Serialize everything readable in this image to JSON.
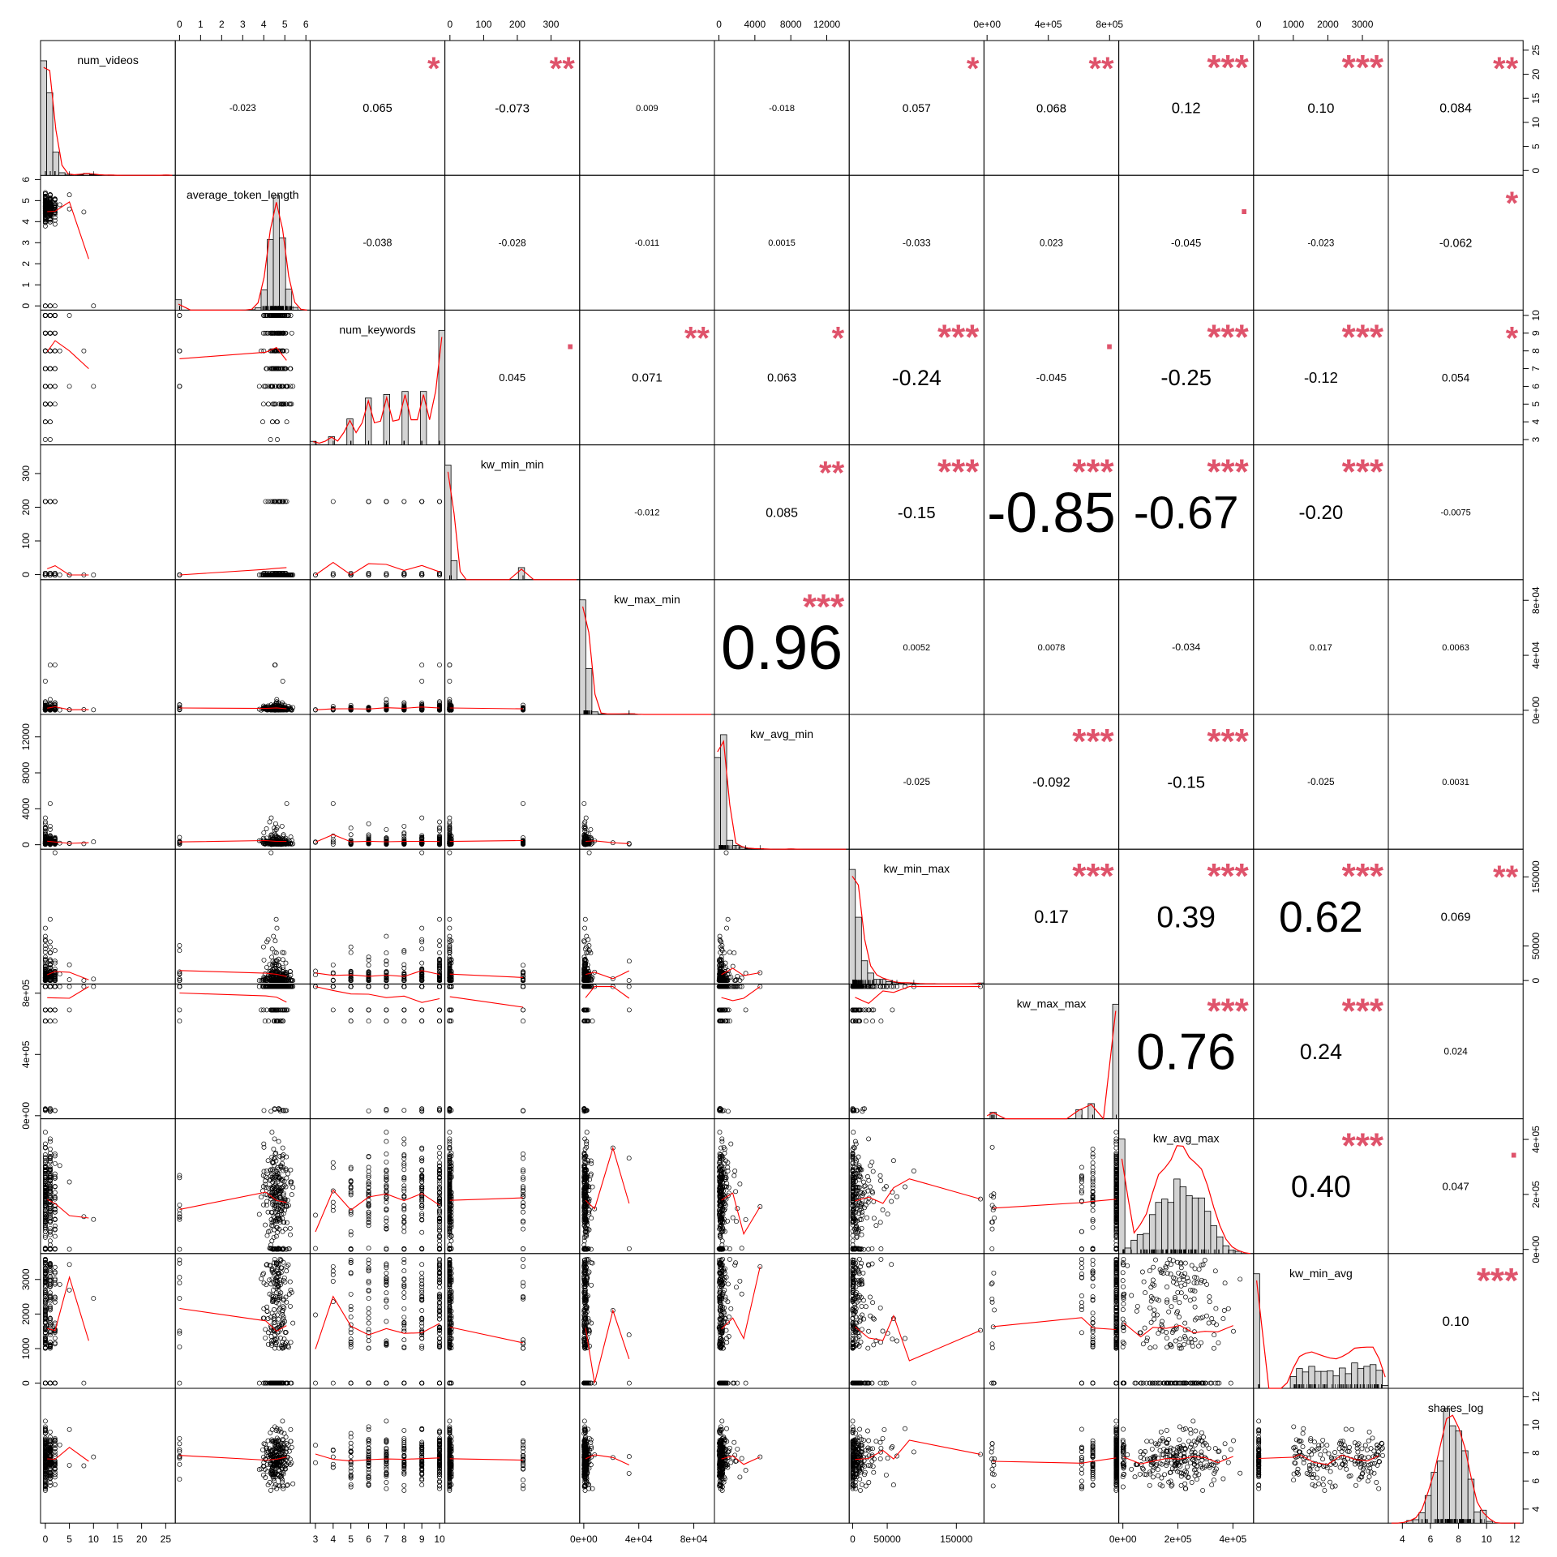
{
  "chart_data": {
    "type": "scatter-matrix",
    "title": "",
    "variables": [
      "num_videos",
      "average_token_length",
      "num_keywords",
      "kw_min_min",
      "kw_max_min",
      "kw_avg_min",
      "kw_min_max",
      "kw_max_max",
      "kw_avg_max",
      "kw_min_avg",
      "shares_log"
    ],
    "ranges": [
      [
        -1,
        27
      ],
      [
        -0.2,
        6.2
      ],
      [
        2.7,
        10.3
      ],
      [
        -15,
        385
      ],
      [
        -3000,
        95000
      ],
      [
        -500,
        14500
      ],
      [
        -5000,
        190000
      ],
      [
        -20000,
        860000
      ],
      [
        -15000,
        475000
      ],
      [
        -150,
        3750
      ],
      [
        3,
        12.6
      ]
    ],
    "axes": {
      "top": [
        {
          "panel": 1,
          "ticks": [
            0,
            1,
            2,
            3,
            4,
            5,
            6
          ],
          "labels": [
            "0",
            "1",
            "2",
            "3",
            "4",
            "5",
            "6"
          ]
        },
        {
          "panel": 3,
          "ticks": [
            0,
            100,
            200,
            300
          ],
          "labels": [
            "0",
            "100",
            "200",
            "300"
          ]
        },
        {
          "panel": 5,
          "ticks": [
            0,
            4000,
            8000,
            12000
          ],
          "labels": [
            "0",
            "4000",
            "8000",
            "12000"
          ]
        },
        {
          "panel": 7,
          "ticks": [
            0,
            400000,
            800000
          ],
          "labels": [
            "0e+00",
            "4e+05",
            "8e+05"
          ]
        },
        {
          "panel": 9,
          "ticks": [
            0,
            1000,
            2000,
            3000
          ],
          "labels": [
            "0",
            "1000",
            "2000",
            "3000"
          ]
        }
      ],
      "bottom": [
        {
          "panel": 0,
          "ticks": [
            0,
            5,
            10,
            15,
            20,
            25
          ],
          "labels": [
            "0",
            "5",
            "10",
            "15",
            "20",
            "25"
          ]
        },
        {
          "panel": 2,
          "ticks": [
            3,
            4,
            5,
            6,
            7,
            8,
            9,
            10
          ],
          "labels": [
            "3",
            "4",
            "5",
            "6",
            "7",
            "8",
            "9",
            "10"
          ]
        },
        {
          "panel": 4,
          "ticks": [
            0,
            40000,
            80000
          ],
          "labels": [
            "0e+00",
            "4e+04",
            "8e+04"
          ]
        },
        {
          "panel": 6,
          "ticks": [
            0,
            50000,
            150000
          ],
          "labels": [
            "0",
            "50000",
            "150000"
          ]
        },
        {
          "panel": 8,
          "ticks": [
            0,
            200000,
            400000
          ],
          "labels": [
            "0e+00",
            "2e+05",
            "4e+05"
          ]
        },
        {
          "panel": 10,
          "ticks": [
            4,
            6,
            8,
            10,
            12
          ],
          "labels": [
            "4",
            "6",
            "8",
            "10",
            "12"
          ]
        }
      ],
      "left": [
        {
          "panel": 1,
          "ticks": [
            0,
            1,
            2,
            3,
            4,
            5,
            6
          ],
          "labels": [
            "0",
            "1",
            "2",
            "3",
            "4",
            "5",
            "6"
          ]
        },
        {
          "panel": 3,
          "ticks": [
            0,
            100,
            200,
            300
          ],
          "labels": [
            "0",
            "100",
            "200",
            "300"
          ]
        },
        {
          "panel": 5,
          "ticks": [
            0,
            4000,
            8000,
            12000
          ],
          "labels": [
            "0",
            "4000",
            "8000",
            "12000"
          ]
        },
        {
          "panel": 7,
          "ticks": [
            0,
            400000,
            800000
          ],
          "labels": [
            "0e+00",
            "4e+05",
            "8e+05"
          ]
        },
        {
          "panel": 9,
          "ticks": [
            0,
            1000,
            2000,
            3000
          ],
          "labels": [
            "0",
            "1000",
            "2000",
            "3000"
          ]
        }
      ],
      "right": [
        {
          "panel": 0,
          "ticks": [
            0,
            5,
            10,
            15,
            20,
            25
          ],
          "labels": [
            "0",
            "5",
            "10",
            "15",
            "20",
            "25"
          ]
        },
        {
          "panel": 2,
          "ticks": [
            3,
            4,
            5,
            6,
            7,
            8,
            9,
            10
          ],
          "labels": [
            "3",
            "4",
            "5",
            "6",
            "7",
            "8",
            "9",
            "10"
          ]
        },
        {
          "panel": 4,
          "ticks": [
            0,
            40000,
            80000
          ],
          "labels": [
            "0e+00",
            "4e+04",
            "8e+04"
          ]
        },
        {
          "panel": 6,
          "ticks": [
            0,
            50000,
            150000
          ],
          "labels": [
            "0",
            "50000",
            "150000"
          ]
        },
        {
          "panel": 8,
          "ticks": [
            0,
            200000,
            400000
          ],
          "labels": [
            "0e+00",
            "2e+05",
            "4e+05"
          ]
        },
        {
          "panel": 10,
          "ticks": [
            4,
            6,
            8,
            10,
            12
          ],
          "labels": [
            "4",
            "6",
            "8",
            "10",
            "12"
          ]
        }
      ]
    },
    "correlations": [
      {
        "row": 0,
        "col": 1,
        "text": "-0.023",
        "stars": ""
      },
      {
        "row": 0,
        "col": 2,
        "text": "0.065",
        "stars": "*"
      },
      {
        "row": 0,
        "col": 3,
        "text": "-0.073",
        "stars": "**"
      },
      {
        "row": 0,
        "col": 4,
        "text": "0.009",
        "stars": ""
      },
      {
        "row": 0,
        "col": 5,
        "text": "-0.018",
        "stars": ""
      },
      {
        "row": 0,
        "col": 6,
        "text": "0.057",
        "stars": "*"
      },
      {
        "row": 0,
        "col": 7,
        "text": "0.068",
        "stars": "**"
      },
      {
        "row": 0,
        "col": 8,
        "text": "0.12",
        "stars": "***"
      },
      {
        "row": 0,
        "col": 9,
        "text": "0.10",
        "stars": "***"
      },
      {
        "row": 0,
        "col": 10,
        "text": "0.084",
        "stars": "**"
      },
      {
        "row": 1,
        "col": 2,
        "text": "-0.038",
        "stars": ""
      },
      {
        "row": 1,
        "col": 3,
        "text": "-0.028",
        "stars": ""
      },
      {
        "row": 1,
        "col": 4,
        "text": "-0.011",
        "stars": ""
      },
      {
        "row": 1,
        "col": 5,
        "text": "0.0015",
        "stars": ""
      },
      {
        "row": 1,
        "col": 6,
        "text": "-0.033",
        "stars": ""
      },
      {
        "row": 1,
        "col": 7,
        "text": "0.023",
        "stars": ""
      },
      {
        "row": 1,
        "col": 8,
        "text": "-0.045",
        "stars": "."
      },
      {
        "row": 1,
        "col": 9,
        "text": "-0.023",
        "stars": ""
      },
      {
        "row": 1,
        "col": 10,
        "text": "-0.062",
        "stars": "*"
      },
      {
        "row": 2,
        "col": 3,
        "text": "0.045",
        "stars": "."
      },
      {
        "row": 2,
        "col": 4,
        "text": "0.071",
        "stars": "**"
      },
      {
        "row": 2,
        "col": 5,
        "text": "0.063",
        "stars": "*"
      },
      {
        "row": 2,
        "col": 6,
        "text": "-0.24",
        "stars": "***"
      },
      {
        "row": 2,
        "col": 7,
        "text": "-0.045",
        "stars": "."
      },
      {
        "row": 2,
        "col": 8,
        "text": "-0.25",
        "stars": "***"
      },
      {
        "row": 2,
        "col": 9,
        "text": "-0.12",
        "stars": "***"
      },
      {
        "row": 2,
        "col": 10,
        "text": "0.054",
        "stars": "*"
      },
      {
        "row": 3,
        "col": 4,
        "text": "-0.012",
        "stars": ""
      },
      {
        "row": 3,
        "col": 5,
        "text": "0.085",
        "stars": "**"
      },
      {
        "row": 3,
        "col": 6,
        "text": "-0.15",
        "stars": "***"
      },
      {
        "row": 3,
        "col": 7,
        "text": "-0.85",
        "stars": "***"
      },
      {
        "row": 3,
        "col": 8,
        "text": "-0.67",
        "stars": "***"
      },
      {
        "row": 3,
        "col": 9,
        "text": "-0.20",
        "stars": "***"
      },
      {
        "row": 3,
        "col": 10,
        "text": "-0.0075",
        "stars": ""
      },
      {
        "row": 4,
        "col": 5,
        "text": "0.96",
        "stars": "***"
      },
      {
        "row": 4,
        "col": 6,
        "text": "0.0052",
        "stars": ""
      },
      {
        "row": 4,
        "col": 7,
        "text": "0.0078",
        "stars": ""
      },
      {
        "row": 4,
        "col": 8,
        "text": "-0.034",
        "stars": ""
      },
      {
        "row": 4,
        "col": 9,
        "text": "0.017",
        "stars": ""
      },
      {
        "row": 4,
        "col": 10,
        "text": "0.0063",
        "stars": ""
      },
      {
        "row": 5,
        "col": 6,
        "text": "-0.025",
        "stars": ""
      },
      {
        "row": 5,
        "col": 7,
        "text": "-0.092",
        "stars": "***"
      },
      {
        "row": 5,
        "col": 8,
        "text": "-0.15",
        "stars": "***"
      },
      {
        "row": 5,
        "col": 9,
        "text": "-0.025",
        "stars": ""
      },
      {
        "row": 5,
        "col": 10,
        "text": "0.0031",
        "stars": ""
      },
      {
        "row": 6,
        "col": 7,
        "text": "0.17",
        "stars": "***"
      },
      {
        "row": 6,
        "col": 8,
        "text": "0.39",
        "stars": "***"
      },
      {
        "row": 6,
        "col": 9,
        "text": "0.62",
        "stars": "***"
      },
      {
        "row": 6,
        "col": 10,
        "text": "0.069",
        "stars": "**"
      },
      {
        "row": 7,
        "col": 8,
        "text": "0.76",
        "stars": "***"
      },
      {
        "row": 7,
        "col": 9,
        "text": "0.24",
        "stars": "***"
      },
      {
        "row": 7,
        "col": 10,
        "text": "0.024",
        "stars": ""
      },
      {
        "row": 8,
        "col": 9,
        "text": "0.40",
        "stars": "***"
      },
      {
        "row": 8,
        "col": 10,
        "text": "0.047",
        "stars": "."
      },
      {
        "row": 9,
        "col": 10,
        "text": "0.10",
        "stars": "***"
      }
    ],
    "colors": {
      "points": "#000000",
      "smooth": "#FF0000",
      "stars": "#DF536B",
      "hist_fill": "#D3D3D3",
      "density": "#FF0000"
    }
  }
}
